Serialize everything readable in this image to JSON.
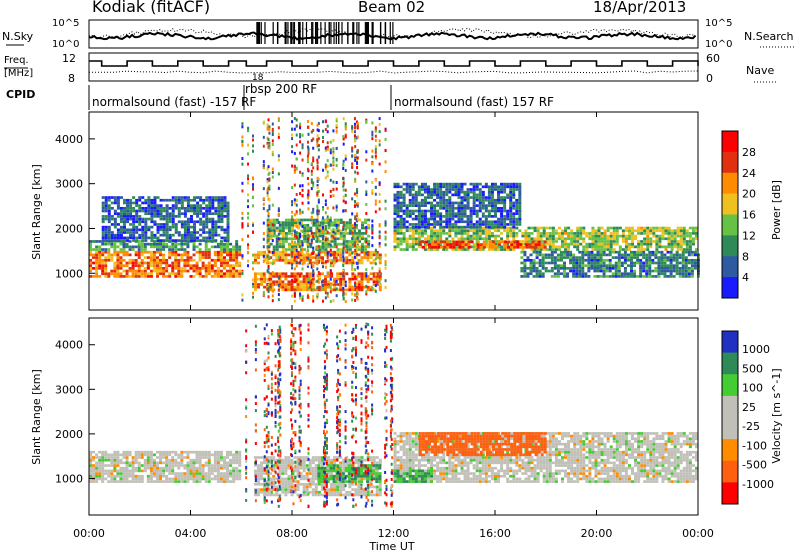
{
  "header": {
    "station": "Kodiak (fitACF)",
    "beam": "Beam 02",
    "date": "18/Apr/2013"
  },
  "top_panels": {
    "nsky_label": "N.Sky",
    "nsky_ticks": [
      "10^5",
      "10^0"
    ],
    "nsearch_label": "N.Search",
    "nsearch_ticks": [
      "10^5",
      "10^0"
    ],
    "freq_label_1": "Freq.",
    "freq_label_2": "[MHz]",
    "freq_ticks": [
      "12",
      "8"
    ],
    "nave_label": "Nave",
    "nave_ticks": [
      "60",
      "0"
    ],
    "cpid_label": "CPID",
    "cpid_segments": [
      {
        "label": "normalsound (fast) -157 RF"
      },
      {
        "label": "rbsp 200 RF"
      },
      {
        "label": "normalsound (fast) 157 RF"
      }
    ],
    "freq_note": "18"
  },
  "power_panel": {
    "ylabel": "Slant Range [km]",
    "yticks": [
      "1000",
      "2000",
      "3000",
      "4000"
    ],
    "colorbar_label": "Power [dB]",
    "colorbar_ticks": [
      "4",
      "8",
      "12",
      "16",
      "20",
      "24",
      "28"
    ],
    "colors": [
      "#1a1aff",
      "#2d5aa0",
      "#2e8b57",
      "#66c244",
      "#f0c020",
      "#ff8c00",
      "#e03010",
      "#ff0000"
    ]
  },
  "velocity_panel": {
    "ylabel": "Slant Range [km]",
    "yticks": [
      "1000",
      "2000",
      "3000",
      "4000"
    ],
    "colorbar_label": "Velocity [m s^-1]",
    "colorbar_ticks": [
      "1000",
      "500",
      "100",
      "25",
      "-25",
      "-100",
      "-500",
      "-1000"
    ],
    "colors": [
      "#2030c0",
      "#2e8b57",
      "#44cc33",
      "#c0c0b8",
      "#c0c0b8",
      "#ff8c00",
      "#ff6010",
      "#ff0000"
    ]
  },
  "x_axis": {
    "ticks": [
      "00:00",
      "04:00",
      "08:00",
      "12:00",
      "16:00",
      "20:00",
      "00:00"
    ],
    "label": "Time UT"
  },
  "chart_data": {
    "type": "heatmap",
    "title": "Kodiak (fitACF)",
    "subtitle": "Beam 02",
    "xlabel": "Time UT",
    "ylabel": "Slant Range [km]",
    "xlim": [
      0,
      24
    ],
    "ylim": [
      180,
      4600
    ],
    "power_scale": [
      0,
      30
    ],
    "velocity_scale": [
      -1000,
      1000
    ],
    "power_bands": [
      {
        "t0": 0.0,
        "t1": 6.0,
        "r0": 900,
        "r1": 1500,
        "level": 22
      },
      {
        "t0": 0.0,
        "t1": 6.0,
        "r0": 1500,
        "r1": 1700,
        "level": 10
      },
      {
        "t0": 0.5,
        "t1": 5.5,
        "r0": 1700,
        "r1": 2700,
        "level": 6
      },
      {
        "t0": 6.5,
        "t1": 11.5,
        "r0": 600,
        "r1": 1000,
        "level": 22
      },
      {
        "t0": 6.5,
        "t1": 11.5,
        "r0": 1200,
        "r1": 1500,
        "level": 20
      },
      {
        "t0": 7.0,
        "t1": 11.0,
        "r0": 1500,
        "r1": 2200,
        "level": 12
      },
      {
        "t0": 12.0,
        "t1": 24.0,
        "r0": 1500,
        "r1": 2000,
        "level": 14
      },
      {
        "t0": 13.0,
        "t1": 18.0,
        "r0": 1550,
        "r1": 1700,
        "level": 24
      },
      {
        "t0": 12.0,
        "t1": 17.0,
        "r0": 2000,
        "r1": 3000,
        "level": 6
      },
      {
        "t0": 17.0,
        "t1": 24.0,
        "r0": 900,
        "r1": 1500,
        "level": 8
      }
    ],
    "velocity_bands": [
      {
        "t0": 0.0,
        "t1": 6.0,
        "r0": 900,
        "r1": 1600,
        "vel": 0
      },
      {
        "t0": 6.5,
        "t1": 11.5,
        "r0": 600,
        "r1": 1500,
        "vel": 0
      },
      {
        "t0": 9.0,
        "t1": 11.5,
        "r0": 900,
        "r1": 1300,
        "vel": 100
      },
      {
        "t0": 12.0,
        "t1": 24.0,
        "r0": 900,
        "r1": 2000,
        "vel": 0
      },
      {
        "t0": 13.0,
        "t1": 18.0,
        "r0": 1500,
        "r1": 2000,
        "vel": -200
      },
      {
        "t0": 12.0,
        "t1": 13.5,
        "r0": 900,
        "r1": 1200,
        "vel": 100
      }
    ],
    "cpid_switch_times": [
      6.0,
      11.9
    ]
  }
}
